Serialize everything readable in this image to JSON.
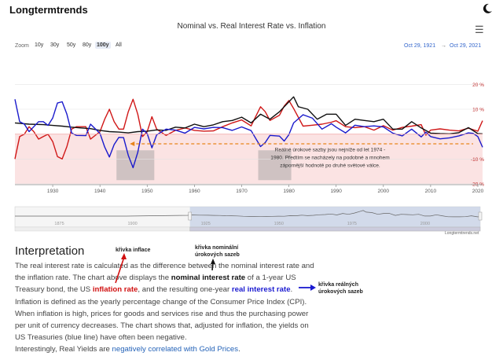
{
  "brand": "Longtermtrends",
  "icons": {
    "theme": "moon-icon",
    "menu": "hamburger-menu-icon"
  },
  "chart_title": "Nominal vs. Real Interest Rate vs. Inflation",
  "zoom": {
    "label": "Zoom",
    "options": [
      "10y",
      "30y",
      "50y",
      "80y",
      "100y",
      "All"
    ],
    "selected": "100y"
  },
  "date_range": {
    "from": "Oct 29, 1921",
    "arrow": "→",
    "to": "Oct 29, 2021"
  },
  "chart_data": {
    "type": "line",
    "title": "Nominal vs. Real Interest Rate vs. Inflation",
    "xlim": [
      1922,
      2021
    ],
    "ylim": [
      -20,
      22
    ],
    "yticks": [
      20,
      10,
      0,
      -10,
      -20
    ],
    "ytick_labels": [
      "20 %",
      "10 %",
      "",
      "-10 %",
      "-20 %"
    ],
    "xticks": [
      1930,
      1940,
      1950,
      1960,
      1970,
      1980,
      1990,
      2000,
      2010,
      2020
    ],
    "series": [
      {
        "name": "Inflation Rate",
        "color": "#d01818",
        "x": [
          1922,
          1923,
          1924,
          1925,
          1926,
          1927,
          1928,
          1929,
          1930,
          1931,
          1932,
          1933,
          1934,
          1935,
          1937,
          1938,
          1940,
          1941,
          1942,
          1943,
          1944,
          1945,
          1946,
          1947,
          1948,
          1949,
          1950,
          1951,
          1952,
          1954,
          1956,
          1958,
          1960,
          1962,
          1964,
          1966,
          1968,
          1970,
          1972,
          1974,
          1975,
          1976,
          1978,
          1979,
          1980,
          1981,
          1983,
          1985,
          1987,
          1989,
          1990,
          1992,
          1994,
          1996,
          1998,
          2000,
          2002,
          2004,
          2006,
          2008,
          2009,
          2010,
          2012,
          2014,
          2016,
          2018,
          2019,
          2020,
          2021
        ],
        "values": [
          -10,
          -1,
          0,
          3,
          1,
          -2,
          -1,
          0,
          -3,
          -9,
          -10,
          -5,
          2,
          3,
          3,
          -2,
          1,
          6,
          10,
          5,
          2,
          2,
          9,
          14,
          8,
          -1,
          1,
          7,
          2,
          -0.5,
          1.5,
          2.5,
          1.5,
          1.2,
          1.3,
          3,
          4.5,
          5.7,
          3.3,
          11,
          9,
          5.5,
          7.6,
          11.3,
          13.5,
          10.3,
          3.2,
          3.6,
          4,
          4.8,
          5.4,
          3,
          2.6,
          3,
          1.6,
          3.4,
          1.6,
          2.7,
          3.2,
          3.8,
          -0.4,
          1.6,
          2.1,
          1.6,
          1.3,
          2.4,
          1.8,
          1.2,
          5.4
        ]
      },
      {
        "name": "Nominal Interest Rate",
        "color": "#111111",
        "x": [
          1922,
          1925,
          1928,
          1930,
          1932,
          1934,
          1936,
          1938,
          1940,
          1942,
          1944,
          1946,
          1948,
          1950,
          1952,
          1954,
          1956,
          1958,
          1960,
          1962,
          1964,
          1966,
          1968,
          1970,
          1972,
          1974,
          1976,
          1978,
          1980,
          1981,
          1982,
          1984,
          1986,
          1988,
          1990,
          1992,
          1994,
          1996,
          1998,
          2000,
          2002,
          2004,
          2006,
          2008,
          2010,
          2012,
          2014,
          2016,
          2018,
          2020,
          2021
        ],
        "values": [
          4.5,
          4,
          3.8,
          3.5,
          3.2,
          2.8,
          2.5,
          2.2,
          1.5,
          1,
          0.8,
          0.5,
          1,
          1.2,
          1.7,
          1.5,
          2.8,
          2.5,
          4,
          3,
          3.7,
          5,
          5.5,
          6.8,
          4.5,
          8,
          6,
          9,
          13,
          15,
          11,
          10,
          6,
          8,
          8,
          3.5,
          6,
          5.5,
          5,
          6,
          2,
          2,
          5,
          2.5,
          0.4,
          0.2,
          0.1,
          0.6,
          2.6,
          0.2,
          0.1
        ]
      },
      {
        "name": "Real Interest Rate",
        "color": "#1a1acc",
        "x": [
          1922,
          1923,
          1924,
          1925,
          1926,
          1927,
          1928,
          1929,
          1930,
          1931,
          1932,
          1933,
          1934,
          1935,
          1937,
          1938,
          1940,
          1941,
          1942,
          1943,
          1944,
          1945,
          1946,
          1947,
          1948,
          1949,
          1950,
          1951,
          1952,
          1954,
          1956,
          1958,
          1960,
          1962,
          1964,
          1966,
          1968,
          1970,
          1972,
          1974,
          1975,
          1976,
          1978,
          1979,
          1980,
          1981,
          1983,
          1985,
          1987,
          1989,
          1990,
          1992,
          1994,
          1996,
          1998,
          2000,
          2002,
          2004,
          2006,
          2008,
          2009,
          2010,
          2012,
          2014,
          2016,
          2018,
          2019,
          2020,
          2021
        ],
        "values": [
          14,
          5,
          4,
          1,
          3,
          5,
          5,
          3.5,
          6.5,
          12.5,
          13,
          8,
          0.5,
          -0.5,
          -0.6,
          4,
          0.3,
          -5.2,
          -9.2,
          -4.2,
          -1.3,
          -1.4,
          -8.5,
          -13.5,
          -7.3,
          2,
          0.2,
          -5.5,
          -0.3,
          2,
          1.6,
          0.4,
          2.7,
          2.1,
          2.7,
          2.6,
          1.5,
          2.9,
          1.4,
          -5,
          -3.4,
          -0.5,
          -0.8,
          -2.8,
          -0.2,
          4.5,
          7.8,
          6.4,
          2,
          4.2,
          2.8,
          0.5,
          3.6,
          3,
          3.3,
          2.9,
          0.4,
          -0.7,
          2,
          -1.1,
          0.8,
          -1,
          -1.9,
          -1.5,
          -0.7,
          0.5,
          0.3,
          -1,
          -5.3
        ]
      }
    ],
    "annotation": "Reálné úrokové sazby jsou nejníže od let 1974 - 1980. Předtím se nacházely na podobné a mnohem zápornější hodnotě po druhé světové válce.",
    "highlights": [
      {
        "from": 1943.5,
        "to": 1951.5
      },
      {
        "from": 1973.5,
        "to": 1980.5
      }
    ],
    "navigator_xticks": [
      1875,
      1900,
      1925,
      1950,
      1975,
      2000
    ],
    "navigator_xlim": [
      1862,
      2021
    ]
  },
  "credit": "Longtermtrends.net",
  "interpretation": {
    "heading": "Interpretation",
    "p1": "The real interest rate is calculated as the difference between the nominal interest rate and the inflation rate. The chart above displays the ",
    "nominal": "nominal interest rate",
    "p2": " of a 1-year US Treasury bond, the US ",
    "inflation": "inflation rate",
    "p3": ", and the resulting one-year ",
    "real": "real interest rate",
    "p4": ". Inflation is defined as the yearly percentage change of the Consumer Price Index (CPI). When inflation is high, prices for goods and services rise and thus the purchasing power per unit of currency decreases. The chart shows that, adjusted for inflation, the yields on US Treasuries (blue line) have often been negative.",
    "p5": "Interestingly, Real Yields are ",
    "link": "negatively correlated with Gold Prices",
    "p6": "."
  },
  "annotations": {
    "inflation": "křivka inflace",
    "nominal_1": "křivka nominální",
    "nominal_2": "úrokových sazeb",
    "real_1": "křivka reálných",
    "real_2": "úrokových sazeb"
  }
}
